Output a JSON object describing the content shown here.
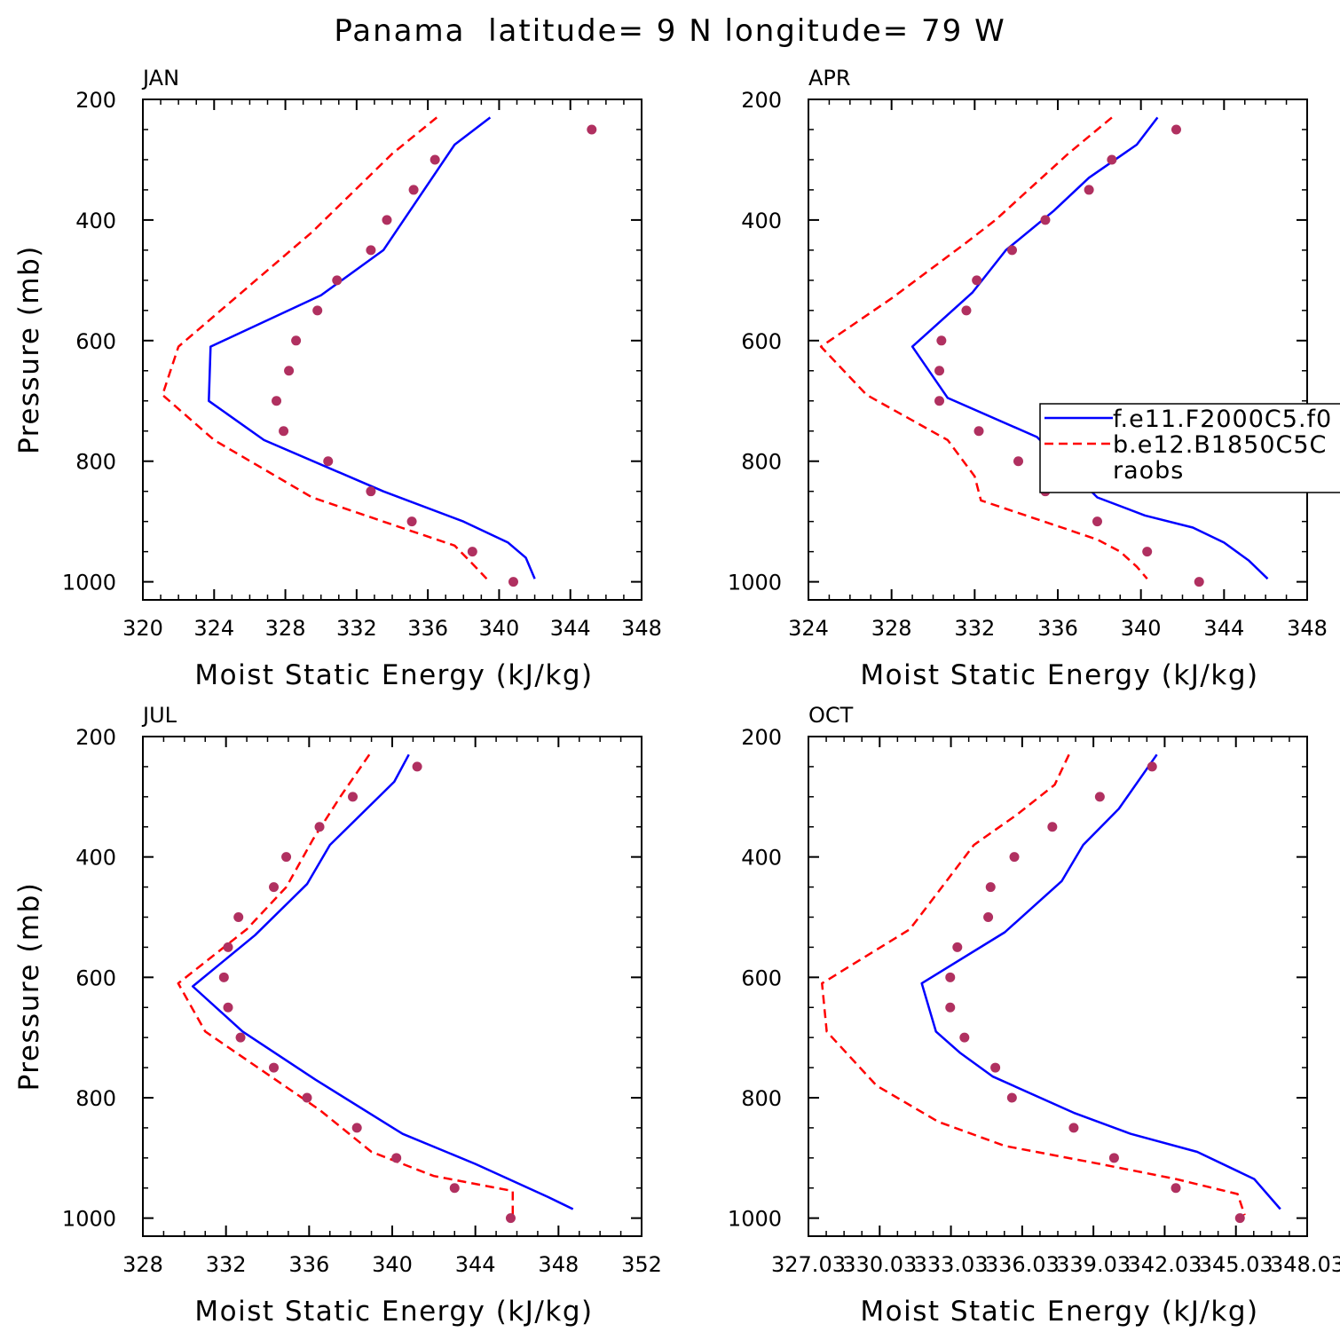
{
  "title": "Panama  latitude= 9 N longitude= 79 W",
  "colors": {
    "model1": "#0000ff",
    "model2": "#ff0000",
    "obs": "#b03060",
    "axis": "#000000"
  },
  "legend": {
    "panel": 1,
    "entries": [
      {
        "label": "f.e11.F2000C5.f0",
        "style": "solid",
        "color": "#0000ff"
      },
      {
        "label": "b.e12.B1850C5C",
        "style": "dashed",
        "color": "#ff0000"
      },
      {
        "label": "raobs",
        "style": "dot",
        "color": "#b03060"
      }
    ]
  },
  "chart_data": [
    {
      "type": "line",
      "panel_label": "JAN",
      "xlabel": "Moist Static Energy (kJ/kg)",
      "ylabel": "Pressure (mb)",
      "xlim": [
        320,
        348
      ],
      "ylim": [
        1000,
        200
      ],
      "x_ticks": [
        320,
        324,
        328,
        332,
        336,
        340,
        344,
        348
      ],
      "x_tick_labels": [
        "320",
        "324",
        "328",
        "332",
        "336",
        "340",
        "344",
        "348"
      ],
      "y_ticks": [
        200,
        400,
        600,
        800,
        1000
      ],
      "series": [
        {
          "name": "f.e11.F2000C5.f0",
          "style": "solid",
          "x": [
            339.5,
            337.5,
            333.5,
            330.0,
            323.8,
            323.7,
            326.8,
            333.5,
            338.0,
            340.5,
            341.5,
            342.0
          ],
          "y": [
            230,
            275,
            450,
            525,
            610,
            700,
            765,
            850,
            900,
            935,
            960,
            995
          ]
        },
        {
          "name": "b.e12.B1850C5C",
          "style": "dashed",
          "x": [
            336.5,
            334.0,
            329.5,
            322.0,
            321.1,
            324.0,
            329.5,
            334.5,
            337.5,
            338.5,
            339.3
          ],
          "y": [
            230,
            290,
            420,
            610,
            690,
            765,
            860,
            910,
            940,
            970,
            995
          ]
        },
        {
          "name": "raobs",
          "style": "dot",
          "x": [
            345.2,
            336.4,
            335.2,
            333.7,
            332.8,
            330.9,
            329.8,
            328.6,
            328.2,
            327.5,
            327.9,
            330.4,
            332.8,
            335.1,
            338.5,
            340.8
          ],
          "y": [
            250,
            300,
            350,
            400,
            450,
            500,
            550,
            600,
            650,
            700,
            750,
            800,
            850,
            900,
            950,
            1000
          ]
        }
      ]
    },
    {
      "type": "line",
      "panel_label": "APR",
      "xlabel": "Moist Static Energy (kJ/kg)",
      "ylabel": "",
      "xlim": [
        324,
        348
      ],
      "ylim": [
        1000,
        200
      ],
      "x_ticks": [
        324,
        328,
        332,
        336,
        340,
        344,
        348
      ],
      "x_tick_labels": [
        "324",
        "328",
        "332",
        "336",
        "340",
        "344",
        "348"
      ],
      "y_ticks": [
        200,
        400,
        600,
        800,
        1000
      ],
      "series": [
        {
          "name": "f.e11.F2000C5.f0",
          "style": "solid",
          "x": [
            340.8,
            339.8,
            337.5,
            335.8,
            333.5,
            331.9,
            329.0,
            330.7,
            335.0,
            337.9,
            340.2,
            342.5,
            344.0,
            345.2,
            346.1
          ],
          "y": [
            230,
            275,
            330,
            385,
            450,
            520,
            610,
            695,
            760,
            860,
            890,
            910,
            935,
            965,
            995
          ]
        },
        {
          "name": "b.e12.B1850C5C",
          "style": "dashed",
          "x": [
            338.6,
            336.5,
            333.0,
            331.5,
            328.0,
            324.6,
            326.8,
            330.7,
            332.0,
            332.3,
            336.2,
            337.9,
            339.0,
            339.8,
            340.3
          ],
          "y": [
            230,
            290,
            400,
            440,
            530,
            610,
            690,
            765,
            825,
            865,
            910,
            930,
            950,
            975,
            995
          ]
        },
        {
          "name": "raobs",
          "style": "dot",
          "x": [
            341.7,
            338.6,
            337.5,
            335.4,
            333.8,
            332.1,
            331.6,
            330.4,
            330.3,
            330.3,
            332.2,
            334.1,
            337.1,
            335.4,
            337.9,
            340.3,
            342.8
          ],
          "y": [
            250,
            300,
            350,
            400,
            450,
            500,
            550,
            600,
            650,
            700,
            750,
            800,
            825,
            850,
            900,
            950,
            1000
          ]
        }
      ]
    },
    {
      "type": "line",
      "panel_label": "JUL",
      "xlabel": "Moist Static Energy (kJ/kg)",
      "ylabel": "Pressure (mb)",
      "xlim": [
        328,
        352
      ],
      "ylim": [
        1000,
        200
      ],
      "x_ticks": [
        328,
        332,
        336,
        340,
        344,
        348,
        352
      ],
      "x_tick_labels": [
        "328",
        "332",
        "336",
        "340",
        "344",
        "348",
        "352"
      ],
      "y_ticks": [
        200,
        400,
        600,
        800,
        1000
      ],
      "series": [
        {
          "name": "f.e11.F2000C5.f0",
          "style": "solid",
          "x": [
            340.8,
            340.1,
            337.0,
            335.9,
            333.4,
            330.4,
            332.8,
            336.3,
            340.5,
            344.0,
            347.5,
            348.7
          ],
          "y": [
            230,
            275,
            380,
            445,
            530,
            615,
            690,
            770,
            860,
            910,
            965,
            985
          ]
        },
        {
          "name": "b.e12.B1850C5C",
          "style": "dashed",
          "x": [
            338.9,
            337.5,
            336.2,
            334.9,
            333.0,
            329.7,
            331.0,
            336.5,
            339.0,
            342.0,
            345.8,
            345.8
          ],
          "y": [
            230,
            300,
            370,
            450,
            520,
            610,
            690,
            820,
            890,
            930,
            955,
            995
          ]
        },
        {
          "name": "raobs",
          "style": "dot",
          "x": [
            341.2,
            338.1,
            336.5,
            334.9,
            334.3,
            332.6,
            332.1,
            331.9,
            332.1,
            332.7,
            334.3,
            335.9,
            338.3,
            340.2,
            343.0,
            345.7
          ],
          "y": [
            250,
            300,
            350,
            400,
            450,
            500,
            550,
            600,
            650,
            700,
            750,
            800,
            850,
            900,
            950,
            1000
          ]
        }
      ]
    },
    {
      "type": "line",
      "panel_label": "OCT",
      "xlabel": "Moist Static Energy (kJ/kg)",
      "ylabel": "",
      "xlim": [
        327.03,
        348.03
      ],
      "ylim": [
        1000,
        200
      ],
      "x_ticks": [
        327.03,
        330.03,
        333.03,
        336.03,
        339.03,
        342.03,
        345.03,
        348.03
      ],
      "x_tick_labels": [
        "327.03",
        "330.03",
        "333.03",
        "336.03",
        "339.03",
        "342.03",
        "345.03",
        "348.03"
      ],
      "y_ticks": [
        200,
        400,
        600,
        800,
        1000
      ],
      "series": [
        {
          "name": "f.e11.F2000C5.f0",
          "style": "solid",
          "x": [
            341.7,
            340.1,
            338.6,
            337.7,
            335.3,
            331.8,
            332.4,
            333.4,
            334.8,
            338.2,
            340.6,
            343.4,
            345.8,
            346.9
          ],
          "y": [
            230,
            320,
            380,
            440,
            525,
            610,
            690,
            725,
            765,
            825,
            860,
            890,
            935,
            985
          ]
        },
        {
          "name": "b.e12.B1850C5C",
          "style": "dashed",
          "x": [
            338.0,
            337.4,
            335.8,
            334.0,
            331.3,
            327.6,
            327.8,
            329.9,
            332.5,
            335.3,
            339.3,
            342.5,
            345.1,
            345.4
          ],
          "y": [
            230,
            280,
            330,
            380,
            520,
            610,
            690,
            780,
            840,
            880,
            910,
            935,
            960,
            995
          ]
        },
        {
          "name": "raobs",
          "style": "dot",
          "x": [
            341.5,
            339.3,
            337.3,
            335.7,
            334.7,
            334.6,
            333.3,
            333.0,
            333.0,
            333.6,
            334.9,
            335.6,
            338.2,
            339.9,
            342.5,
            345.2
          ],
          "y": [
            250,
            300,
            350,
            400,
            450,
            500,
            550,
            600,
            650,
            700,
            750,
            800,
            850,
            900,
            950,
            1000
          ]
        }
      ]
    }
  ]
}
